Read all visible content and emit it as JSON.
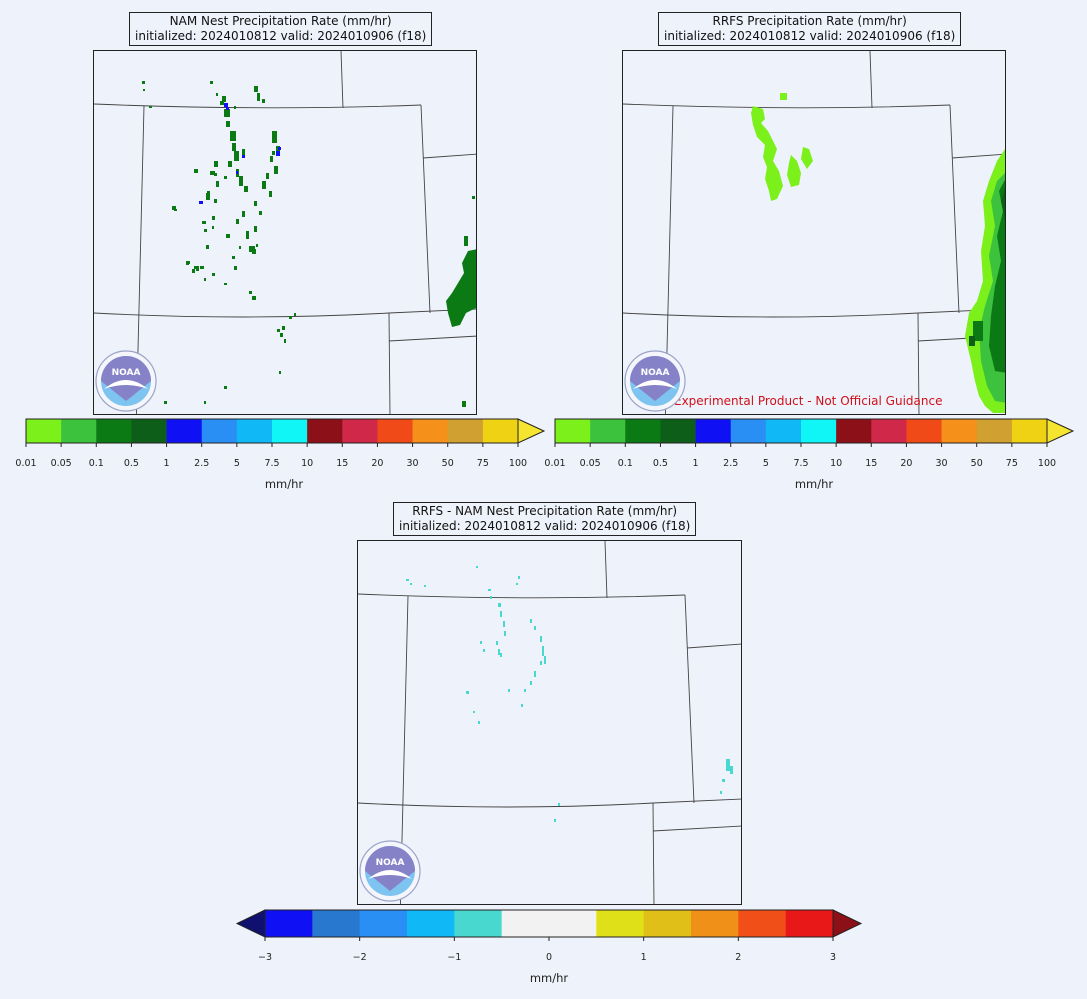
{
  "panels": [
    {
      "id": "nam",
      "title_line1": "NAM Nest Precipitation Rate (mm/hr)",
      "title_line2": "initialized: 2024010812 valid: 2024010906 (f18)"
    },
    {
      "id": "rrfs",
      "title_line1": "RRFS Precipitation Rate (mm/hr)",
      "title_line2": "initialized: 2024010812 valid: 2024010906 (f18)",
      "disclaimer": "Experimental Product - Not Official Guidance"
    },
    {
      "id": "diff",
      "title_line1": "RRFS - NAM Nest Precipitation Rate (mm/hr)",
      "title_line2": "initialized: 2024010812 valid: 2024010906 (f18)"
    }
  ],
  "precip_colorbar": {
    "ticks": [
      "0.01",
      "0.05",
      "0.1",
      "0.5",
      "1",
      "2.5",
      "5",
      "7.5",
      "10",
      "15",
      "20",
      "30",
      "50",
      "75",
      "100"
    ],
    "colors": [
      "#7cf01a",
      "#3cc23c",
      "#0b7a15",
      "#0d5e18",
      "#1010f5",
      "#2a8ff5",
      "#10b8f5",
      "#10f5f5",
      "#8c1018",
      "#d02848",
      "#f04a18",
      "#f5901a",
      "#d0a030",
      "#f0d214"
    ],
    "extend_color": "#f5e430",
    "unit": "mm/hr"
  },
  "diff_colorbar": {
    "ticks": [
      "−3",
      "−2",
      "−1",
      "0",
      "1",
      "2",
      "3"
    ],
    "colors": [
      "#1010f5",
      "#2878d0",
      "#2a8ff5",
      "#10b8f5",
      "#48d8d0",
      "#f2f2f2",
      "#f2f2f2",
      "#e0e018",
      "#e0c018",
      "#f09018",
      "#f05018",
      "#e81818"
    ],
    "extend_low": "#101070",
    "extend_high": "#8c1018",
    "unit": "mm/hr"
  },
  "logo": {
    "text": "NOAA",
    "icon": "noaa-logo-icon"
  }
}
